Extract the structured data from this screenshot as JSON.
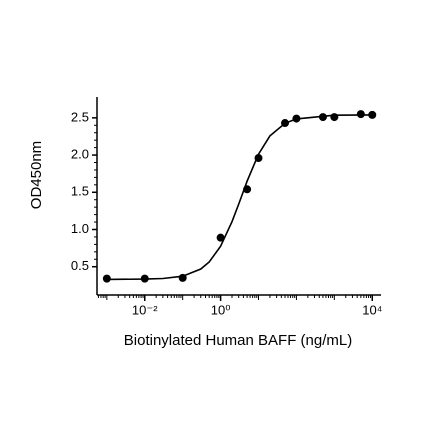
{
  "chart_data": {
    "type": "scatter",
    "x_label": "Biotinylated Human BAFF (ng/mL)",
    "y_label": "OD450nm",
    "x_scale": "log",
    "x": [
      0.001,
      0.01,
      0.1,
      1,
      5,
      10,
      50,
      100,
      500,
      1000,
      5000,
      10000
    ],
    "series": [
      {
        "color": "#000000",
        "values": [
          0.34,
          0.34,
          0.35,
          0.89,
          1.54,
          1.96,
          2.43,
          2.49,
          2.51,
          2.51,
          2.55,
          2.54
        ]
      }
    ],
    "curve": {
      "color": "#000000",
      "x": [
        0.001,
        0.01,
        0.03,
        0.1,
        0.3,
        0.5,
        1,
        2,
        3,
        5,
        10,
        20,
        50,
        100,
        1000,
        10000
      ],
      "values": [
        0.33,
        0.334,
        0.342,
        0.373,
        0.469,
        0.563,
        0.775,
        1.105,
        1.341,
        1.649,
        2.011,
        2.257,
        2.427,
        2.486,
        2.536,
        2.54
      ]
    },
    "xlim": [
      0.00055,
      17000
    ],
    "ylim": [
      0.12,
      2.78
    ],
    "xticks": [
      {
        "value": 0.01,
        "label": "10⁻²"
      },
      {
        "value": 1,
        "label": "10⁰"
      },
      {
        "value": 10000,
        "label": "10⁴"
      }
    ],
    "yticks": [
      0.5,
      {
        "value": 1,
        "label": "1.0"
      },
      1.5,
      {
        "value": 2,
        "label": "2.0"
      },
      2.5
    ]
  }
}
